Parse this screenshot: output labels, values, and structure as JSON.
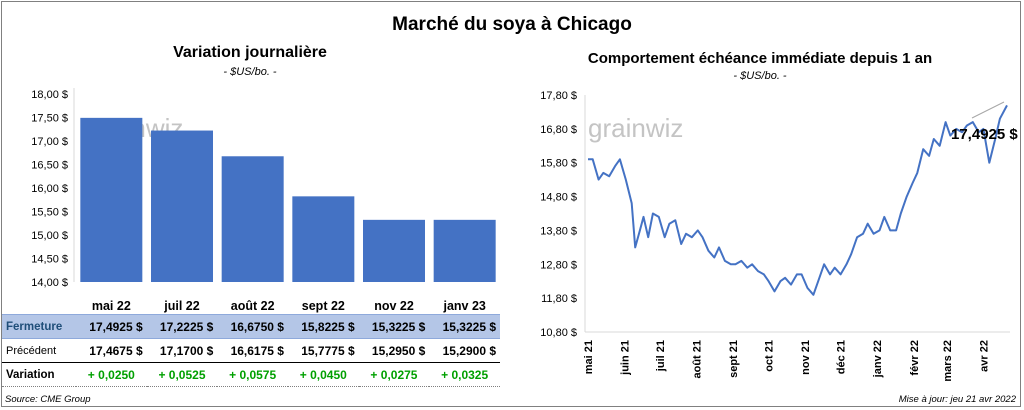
{
  "main_title": "Marché du soya à Chicago",
  "watermark": "grainwiz",
  "left_chart": {
    "title": "Variation  journalière",
    "subtitle": "- $US/bo. -",
    "bar_color": "#4472c4"
  },
  "right_chart": {
    "title": "Comportement  échéance immédiate depuis 1 an",
    "subtitle": "- $US/bo. -",
    "last_label": "17,4925 $",
    "line_color": "#4472c4"
  },
  "table": {
    "rows": [
      {
        "label": "Fermeture",
        "cells": [
          "17,4925  $",
          "17,2225  $",
          "16,6750  $",
          "15,8225  $",
          "15,3225  $",
          "15,3225  $"
        ]
      },
      {
        "label": "Précédent",
        "cells": [
          "17,4675  $",
          "17,1700  $",
          "16,6175  $",
          "15,7775  $",
          "15,2950  $",
          "15,2900  $"
        ]
      },
      {
        "label": "Variation",
        "cells": [
          "+ 0,0250",
          "+ 0,0525",
          "+ 0,0575",
          "+ 0,0450",
          "+ 0,0275",
          "+ 0,0325"
        ]
      }
    ]
  },
  "footer": {
    "source": "Source: CME Group",
    "updated": "Mise à jour: jeu 21 avr 2022"
  },
  "chart_data": [
    {
      "type": "bar",
      "title": "Variation  journalière",
      "subtitle": "- $US/bo. -",
      "categories": [
        "mai 22",
        "juil 22",
        "août 22",
        "sept 22",
        "nov 22",
        "janv 23"
      ],
      "values": [
        17.4925,
        17.2225,
        16.675,
        15.8225,
        15.3225,
        15.3225
      ],
      "ylim": [
        14.0,
        18.0
      ],
      "yticks": [
        "18,00 $",
        "17,50 $",
        "17,00 $",
        "16,50 $",
        "16,00 $",
        "15,50 $",
        "15,00 $",
        "14,50 $",
        "14,00 $"
      ],
      "grid": false
    },
    {
      "type": "line",
      "title": "Comportement  échéance immédiate depuis 1 an",
      "subtitle": "- $US/bo. -",
      "ylim": [
        10.8,
        17.8
      ],
      "yticks": [
        "17,80 $",
        "16,80 $",
        "15,80 $",
        "14,80 $",
        "13,80 $",
        "12,80 $",
        "11,80 $",
        "10,80 $"
      ],
      "xticks": [
        "mai 21",
        "juin 21",
        "juil 21",
        "août 21",
        "sept 21",
        "oct 21",
        "nov 21",
        "déc 21",
        "janv 22",
        "févr 22",
        "mars 22",
        "avr 22"
      ],
      "x": [
        "2021-05-01",
        "2021-05-05",
        "2021-05-10",
        "2021-05-14",
        "2021-05-19",
        "2021-05-24",
        "2021-05-28",
        "2021-06-02",
        "2021-06-07",
        "2021-06-10",
        "2021-06-14",
        "2021-06-17",
        "2021-06-21",
        "2021-06-25",
        "2021-06-30",
        "2021-07-05",
        "2021-07-09",
        "2021-07-14",
        "2021-07-19",
        "2021-07-23",
        "2021-07-28",
        "2021-08-02",
        "2021-08-06",
        "2021-08-11",
        "2021-08-16",
        "2021-08-20",
        "2021-08-25",
        "2021-08-30",
        "2021-09-03",
        "2021-09-08",
        "2021-09-13",
        "2021-09-17",
        "2021-09-22",
        "2021-09-27",
        "2021-10-01",
        "2021-10-06",
        "2021-10-11",
        "2021-10-15",
        "2021-10-20",
        "2021-10-25",
        "2021-10-29",
        "2021-11-03",
        "2021-11-08",
        "2021-11-12",
        "2021-11-17",
        "2021-11-22",
        "2021-11-26",
        "2021-12-01",
        "2021-12-06",
        "2021-12-10",
        "2021-12-15",
        "2021-12-20",
        "2021-12-24",
        "2021-12-29",
        "2022-01-03",
        "2022-01-07",
        "2022-01-12",
        "2022-01-17",
        "2022-01-21",
        "2022-01-26",
        "2022-01-31",
        "2022-02-04",
        "2022-02-09",
        "2022-02-14",
        "2022-02-18",
        "2022-02-23",
        "2022-02-28",
        "2022-03-04",
        "2022-03-09",
        "2022-03-14",
        "2022-03-18",
        "2022-03-23",
        "2022-03-28",
        "2022-04-01",
        "2022-04-06",
        "2022-04-11",
        "2022-04-15",
        "2022-04-21"
      ],
      "y": [
        15.9,
        15.9,
        15.3,
        15.5,
        15.4,
        15.7,
        15.9,
        15.3,
        14.6,
        13.3,
        13.8,
        14.2,
        13.6,
        14.3,
        14.2,
        13.6,
        14.0,
        14.1,
        13.4,
        13.7,
        13.6,
        13.8,
        13.6,
        13.2,
        13.0,
        13.3,
        12.9,
        12.8,
        12.8,
        12.9,
        12.7,
        12.8,
        12.6,
        12.5,
        12.3,
        12.0,
        12.3,
        12.4,
        12.2,
        12.5,
        12.5,
        12.1,
        11.9,
        12.3,
        12.8,
        12.5,
        12.7,
        12.5,
        12.8,
        13.1,
        13.6,
        13.7,
        14.0,
        13.7,
        13.8,
        14.2,
        13.8,
        13.8,
        14.3,
        14.8,
        15.2,
        15.5,
        16.2,
        16.0,
        16.5,
        16.3,
        17.0,
        16.6,
        16.8,
        16.7,
        16.9,
        17.0,
        16.7,
        16.8,
        15.8,
        16.5,
        17.1,
        17.4925
      ],
      "grid": false
    }
  ]
}
